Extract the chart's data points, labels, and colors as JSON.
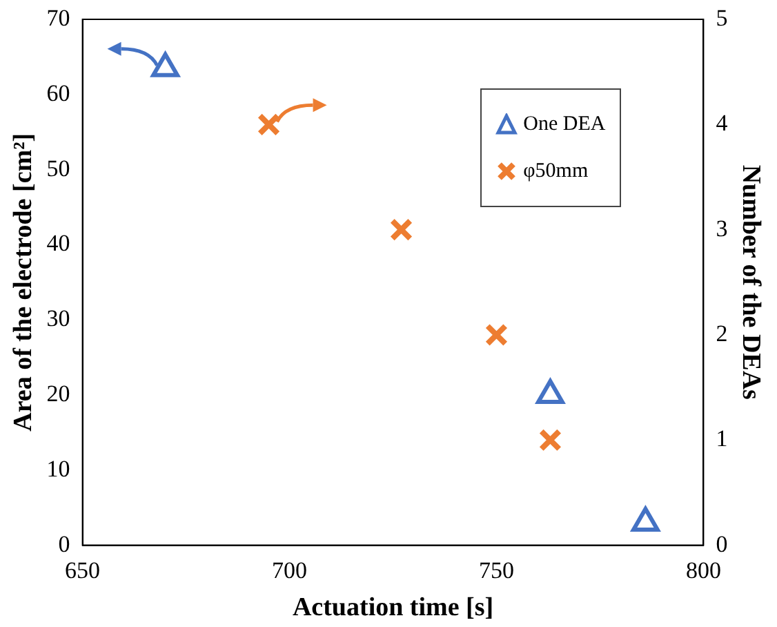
{
  "chart_data": {
    "type": "scatter",
    "xlabel": "Actuation time [s]",
    "ylabel": "Area of the electrode [cm²]",
    "y2label": "Number of the DEAs",
    "series": [
      {
        "name": "One DEA",
        "color": "#4472c4",
        "marker": "triangle",
        "x": [
          670,
          763,
          786
        ],
        "values": [
          63.5,
          20,
          3
        ]
      },
      {
        "name": "φ50mm",
        "color": "#ed7d31",
        "marker": "cross",
        "axis": "y2",
        "x": [
          695,
          727,
          750,
          763
        ],
        "values": [
          4,
          3,
          2,
          1
        ]
      }
    ],
    "xlim": [
      650,
      800
    ],
    "xticks": [
      650,
      700,
      750,
      800
    ],
    "ylim": [
      0,
      70
    ],
    "yticks": [
      0,
      10,
      20,
      30,
      40,
      50,
      60,
      70
    ],
    "y2lim": [
      0,
      5
    ],
    "y2ticks": [
      0,
      1,
      2,
      3,
      4,
      5
    ],
    "grid": false,
    "legend": "top right"
  }
}
